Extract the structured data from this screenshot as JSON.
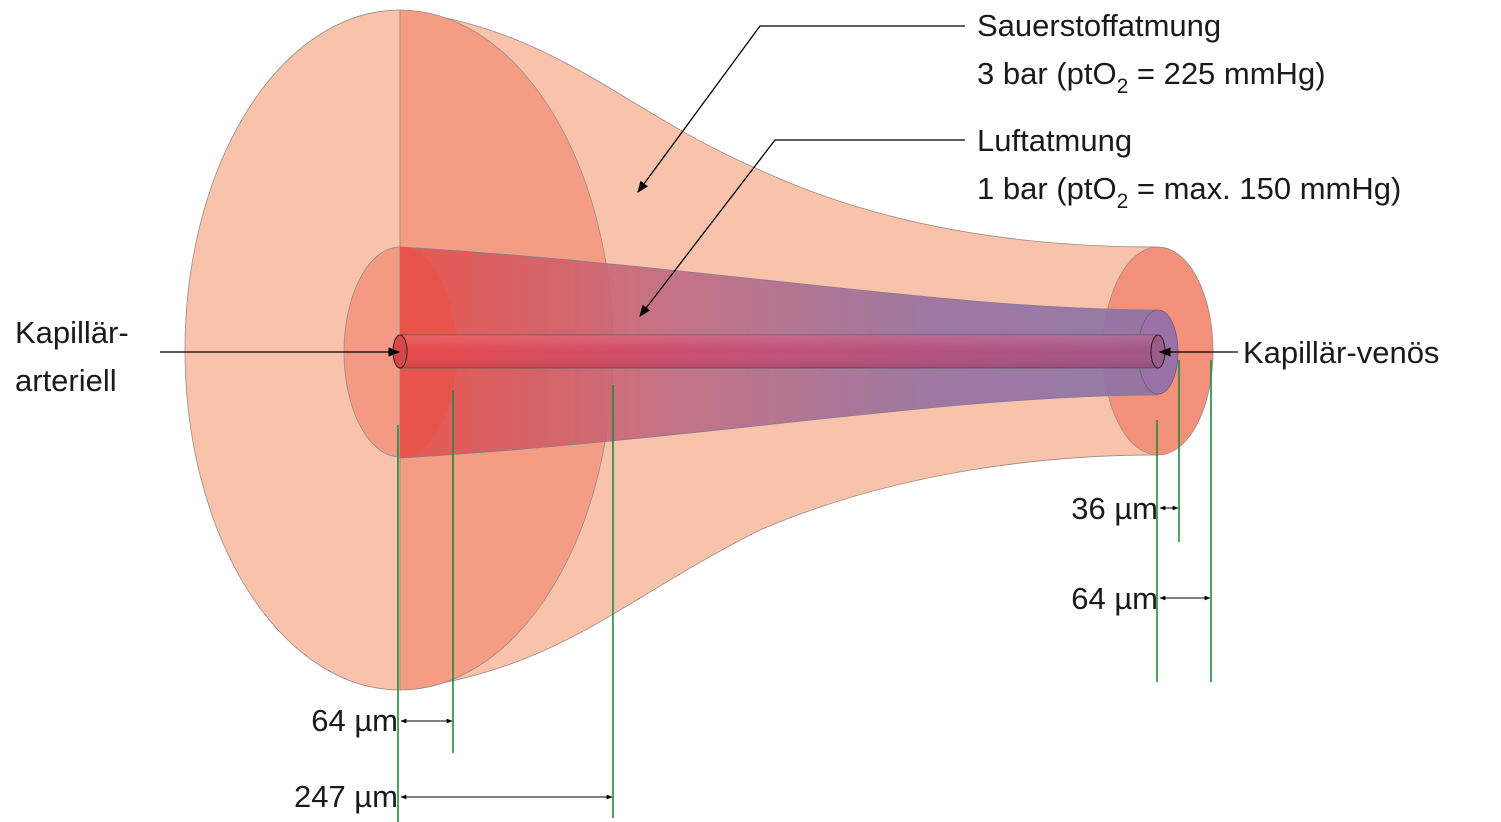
{
  "labels": {
    "oxygen": {
      "title": "Sauerstoffatmung",
      "pressure": {
        "before": "3 bar (ptO",
        "sub": "2",
        "after": " = 225 mmHg)"
      }
    },
    "air": {
      "title": "Luftatmung",
      "pressure": {
        "before": "1 bar (ptO",
        "sub": "2",
        "after": " = max. 150 mmHg)"
      }
    },
    "arterial": {
      "line1": "Kapillär-",
      "line2": "arteriell"
    },
    "venous": "Kapillär-venös"
  },
  "dimensions": {
    "arterial_inner": "64 µm",
    "arterial_outer": "247 µm",
    "venous_inner": "36 µm",
    "venous_outer": "64 µm"
  }
}
